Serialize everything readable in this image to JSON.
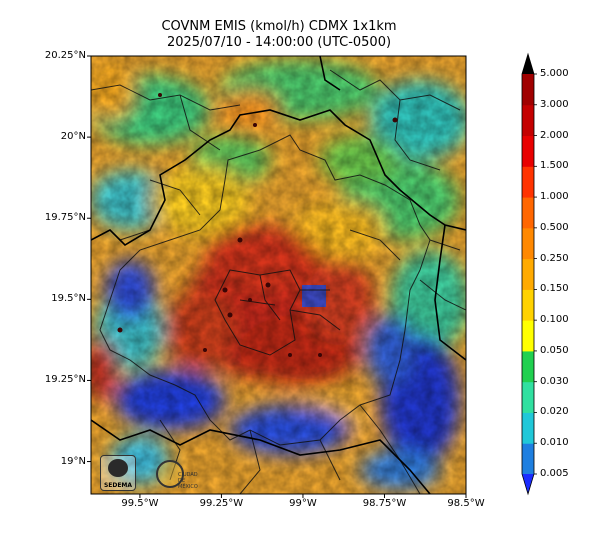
{
  "title": {
    "line1": "COVNM EMIS (kmol/h) CDMX 1x1km",
    "line2": "2025/07/10 - 14:00:00 (UTC-0500)"
  },
  "axes": {
    "y_ticks": [
      "20.25°N",
      "20°N",
      "19.75°N",
      "19.5°N",
      "19.25°N",
      "19°N"
    ],
    "y_values": [
      20.25,
      20.0,
      19.75,
      19.5,
      19.25,
      19.0
    ],
    "x_ticks": [
      "99.5°W",
      "99.25°W",
      "99°W",
      "98.75°W",
      "98.5°W"
    ],
    "x_values": [
      -99.5,
      -99.25,
      -99.0,
      -98.75,
      -98.5
    ],
    "lat_range": [
      18.9,
      20.25
    ],
    "lon_range": [
      -99.65,
      -98.5
    ]
  },
  "colorbar": {
    "labels": [
      "5.000",
      "3.000",
      "2.000",
      "1.500",
      "1.000",
      "0.500",
      "0.250",
      "0.150",
      "0.100",
      "0.050",
      "0.030",
      "0.020",
      "0.010",
      "0.005"
    ],
    "colors": [
      "#0a2ff0",
      "#1e7fe0",
      "#20c8d8",
      "#30e0a0",
      "#20d050",
      "#ffff00",
      "#ffd200",
      "#ffaa00",
      "#ff8800",
      "#ff6600",
      "#ff3300",
      "#e80000",
      "#c40000",
      "#a00000"
    ],
    "under_color": "#1a2cff",
    "over_color": "#000000",
    "extend": "both"
  },
  "logos": {
    "sedema_text": "SEDEMA",
    "cdmx_text": "CIUDAD DE MÉXICO"
  }
}
